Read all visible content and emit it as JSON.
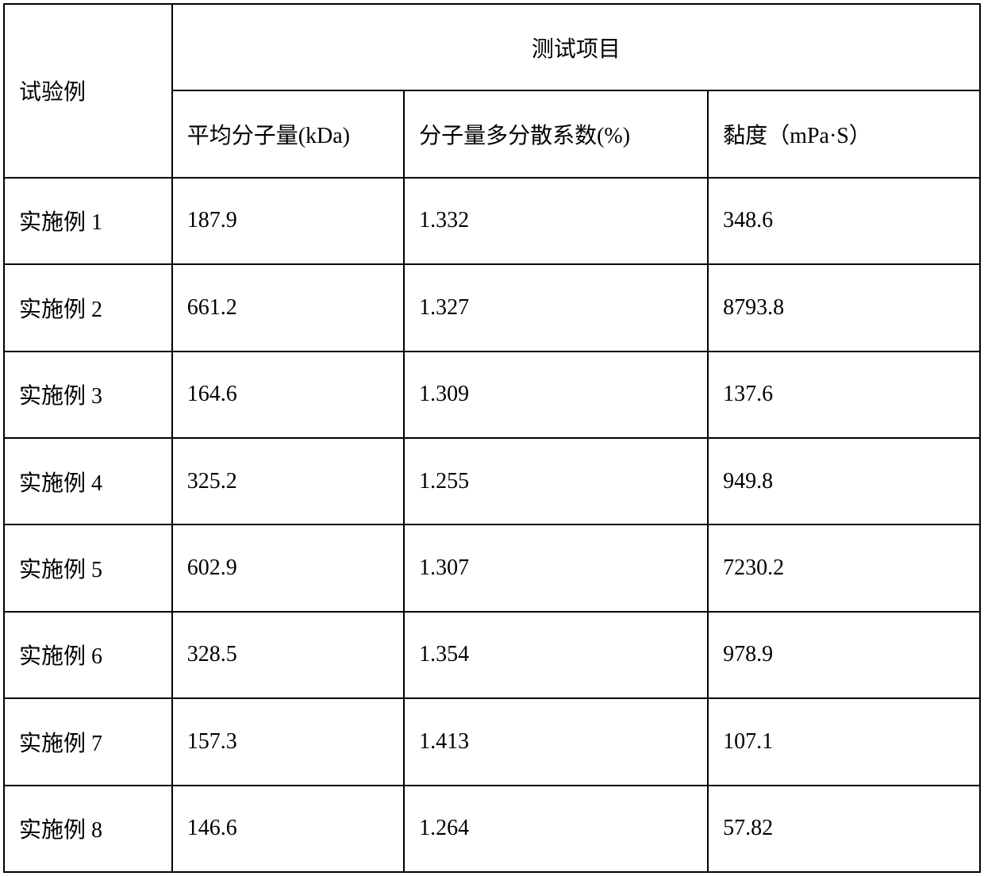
{
  "table": {
    "header": {
      "row_label": "试验例",
      "group_label": "测试项目",
      "columns": [
        "平均分子量(kDa)",
        "分子量多分散系数(%)",
        "黏度（mPa·S）"
      ]
    },
    "rows": [
      {
        "label": "实施例 1",
        "cells": [
          "187.9",
          "1.332",
          "348.6"
        ]
      },
      {
        "label": "实施例 2",
        "cells": [
          "661.2",
          "1.327",
          "8793.8"
        ]
      },
      {
        "label": "实施例 3",
        "cells": [
          "164.6",
          "1.309",
          "137.6"
        ]
      },
      {
        "label": "实施例 4",
        "cells": [
          "325.2",
          "1.255",
          "949.8"
        ]
      },
      {
        "label": "实施例 5",
        "cells": [
          "602.9",
          "1.307",
          "7230.2"
        ]
      },
      {
        "label": "实施例 6",
        "cells": [
          "328.5",
          "1.354",
          "978.9"
        ]
      },
      {
        "label": "实施例 7",
        "cells": [
          "157.3",
          "1.413",
          "107.1"
        ]
      },
      {
        "label": "实施例 8",
        "cells": [
          "146.6",
          "1.264",
          "57.82"
        ]
      }
    ]
  }
}
